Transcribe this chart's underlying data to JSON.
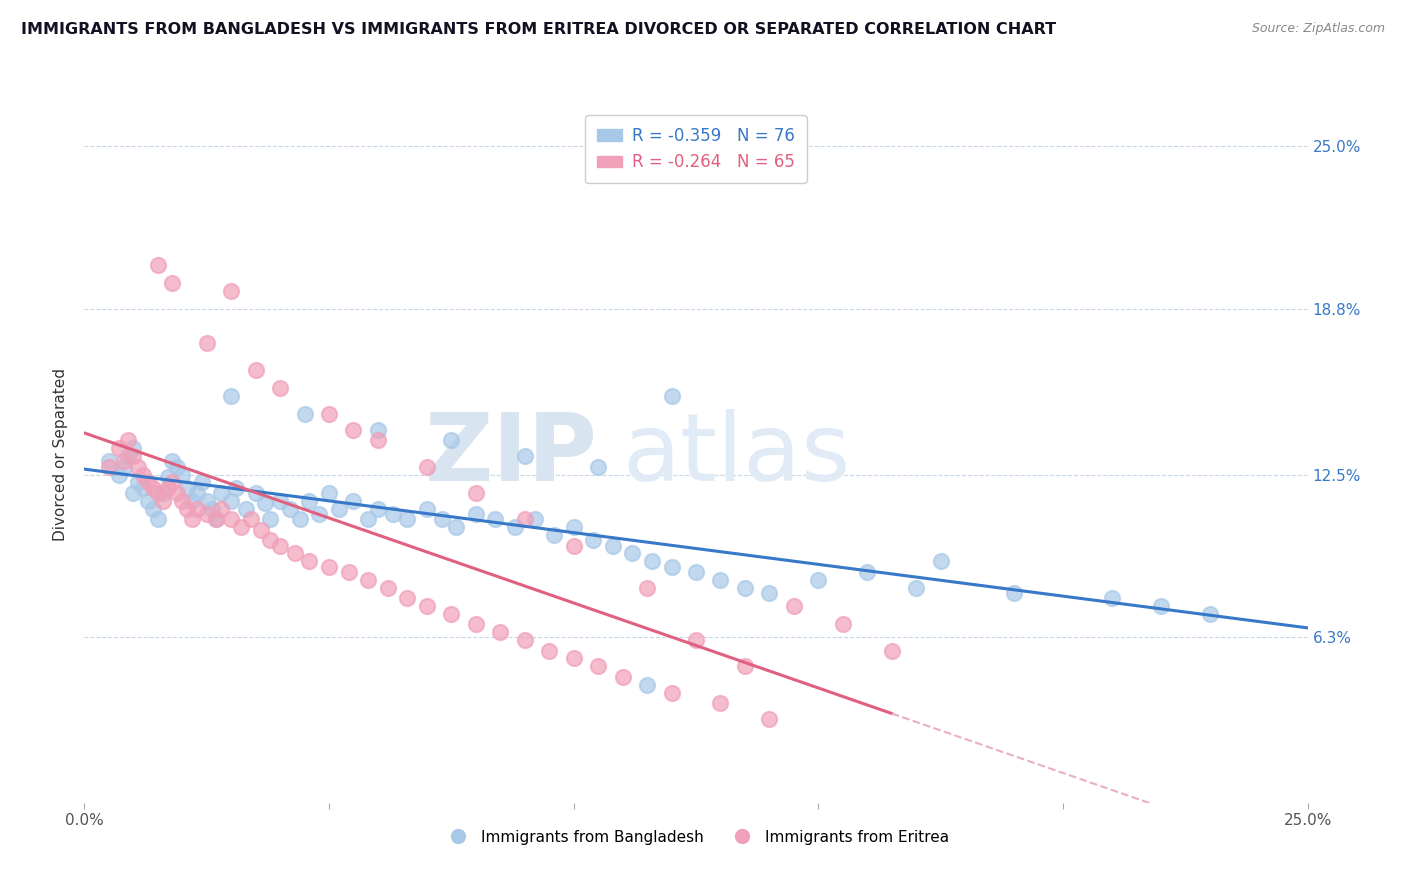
{
  "title": "IMMIGRANTS FROM BANGLADESH VS IMMIGRANTS FROM ERITREA DIVORCED OR SEPARATED CORRELATION CHART",
  "source": "Source: ZipAtlas.com",
  "ylabel": "Divorced or Separated",
  "xlim": [
    0.0,
    0.25
  ],
  "ylim": [
    0.0,
    0.265
  ],
  "xtick_positions": [
    0.0,
    0.05,
    0.1,
    0.15,
    0.2,
    0.25
  ],
  "xtick_labels": [
    "0.0%",
    "",
    "",
    "",
    "",
    "25.0%"
  ],
  "ytick_positions_right": [
    0.063,
    0.125,
    0.188,
    0.25
  ],
  "ytick_labels_right": [
    "6.3%",
    "12.5%",
    "18.8%",
    "25.0%"
  ],
  "bangladesh_R": -0.359,
  "bangladesh_N": 76,
  "eritrea_R": -0.264,
  "eritrea_N": 65,
  "bangladesh_color": "#a8c8e8",
  "eritrea_color": "#f0a0b8",
  "bangladesh_line_color": "#3878c8",
  "eritrea_line_color": "#e06080",
  "trendline_dash_color": "#e8b0c0",
  "background_color": "#ffffff",
  "grid_color": "#c8d8e8",
  "watermark_zip_color": "#d8e4f0",
  "watermark_atlas_color": "#e0ebf5",
  "title_fontsize": 11.5,
  "title_color": "#111122",
  "bang_x": [
    0.005,
    0.007,
    0.008,
    0.009,
    0.01,
    0.01,
    0.011,
    0.012,
    0.013,
    0.014,
    0.015,
    0.016,
    0.017,
    0.018,
    0.019,
    0.02,
    0.021,
    0.022,
    0.023,
    0.024,
    0.025,
    0.026,
    0.027,
    0.028,
    0.03,
    0.031,
    0.033,
    0.035,
    0.037,
    0.038,
    0.04,
    0.042,
    0.044,
    0.046,
    0.048,
    0.05,
    0.052,
    0.055,
    0.058,
    0.06,
    0.063,
    0.066,
    0.07,
    0.073,
    0.076,
    0.08,
    0.084,
    0.088,
    0.092,
    0.096,
    0.1,
    0.104,
    0.108,
    0.112,
    0.116,
    0.12,
    0.125,
    0.13,
    0.135,
    0.14,
    0.03,
    0.045,
    0.06,
    0.075,
    0.09,
    0.105,
    0.12,
    0.15,
    0.17,
    0.19,
    0.21,
    0.22,
    0.23,
    0.115,
    0.16,
    0.175
  ],
  "bang_y": [
    0.13,
    0.125,
    0.128,
    0.132,
    0.135,
    0.118,
    0.122,
    0.12,
    0.115,
    0.112,
    0.108,
    0.118,
    0.124,
    0.13,
    0.128,
    0.125,
    0.12,
    0.115,
    0.118,
    0.122,
    0.115,
    0.112,
    0.108,
    0.118,
    0.115,
    0.12,
    0.112,
    0.118,
    0.114,
    0.108,
    0.115,
    0.112,
    0.108,
    0.115,
    0.11,
    0.118,
    0.112,
    0.115,
    0.108,
    0.112,
    0.11,
    0.108,
    0.112,
    0.108,
    0.105,
    0.11,
    0.108,
    0.105,
    0.108,
    0.102,
    0.105,
    0.1,
    0.098,
    0.095,
    0.092,
    0.09,
    0.088,
    0.085,
    0.082,
    0.08,
    0.155,
    0.148,
    0.142,
    0.138,
    0.132,
    0.128,
    0.155,
    0.085,
    0.082,
    0.08,
    0.078,
    0.075,
    0.072,
    0.045,
    0.088,
    0.092
  ],
  "erit_x": [
    0.005,
    0.007,
    0.008,
    0.009,
    0.01,
    0.011,
    0.012,
    0.013,
    0.014,
    0.015,
    0.016,
    0.017,
    0.018,
    0.019,
    0.02,
    0.021,
    0.022,
    0.023,
    0.025,
    0.027,
    0.028,
    0.03,
    0.032,
    0.034,
    0.036,
    0.038,
    0.04,
    0.043,
    0.046,
    0.05,
    0.054,
    0.058,
    0.062,
    0.066,
    0.07,
    0.075,
    0.08,
    0.085,
    0.09,
    0.095,
    0.1,
    0.105,
    0.11,
    0.12,
    0.13,
    0.14,
    0.015,
    0.018,
    0.025,
    0.03,
    0.035,
    0.04,
    0.05,
    0.055,
    0.06,
    0.07,
    0.08,
    0.09,
    0.1,
    0.115,
    0.125,
    0.135,
    0.145,
    0.155,
    0.165
  ],
  "erit_y": [
    0.128,
    0.135,
    0.13,
    0.138,
    0.132,
    0.128,
    0.125,
    0.122,
    0.12,
    0.118,
    0.115,
    0.12,
    0.122,
    0.118,
    0.115,
    0.112,
    0.108,
    0.112,
    0.11,
    0.108,
    0.112,
    0.108,
    0.105,
    0.108,
    0.104,
    0.1,
    0.098,
    0.095,
    0.092,
    0.09,
    0.088,
    0.085,
    0.082,
    0.078,
    0.075,
    0.072,
    0.068,
    0.065,
    0.062,
    0.058,
    0.055,
    0.052,
    0.048,
    0.042,
    0.038,
    0.032,
    0.205,
    0.198,
    0.175,
    0.195,
    0.165,
    0.158,
    0.148,
    0.142,
    0.138,
    0.128,
    0.118,
    0.108,
    0.098,
    0.082,
    0.062,
    0.052,
    0.075,
    0.068,
    0.058
  ]
}
